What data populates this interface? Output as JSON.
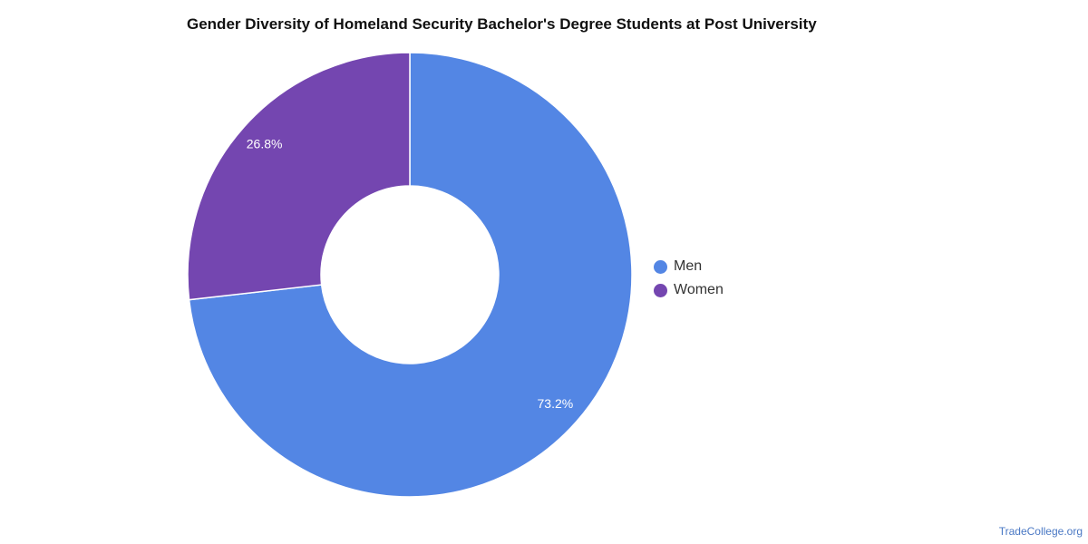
{
  "chart_data": {
    "type": "pie",
    "title": "Gender Diversity of Homeland Security Bachelor's Degree Students at Post University",
    "donut": true,
    "legend_position": "right",
    "slices": [
      {
        "name": "Men",
        "value": 73.2,
        "label": "73.2%",
        "color": "#5386e4"
      },
      {
        "name": "Women",
        "value": 26.8,
        "label": "26.8%",
        "color": "#7446b0"
      }
    ]
  },
  "legend": [
    {
      "label": "Men",
      "color": "#5386e4"
    },
    {
      "label": "Women",
      "color": "#7446b0"
    }
  ],
  "source": "TradeCollege.org"
}
